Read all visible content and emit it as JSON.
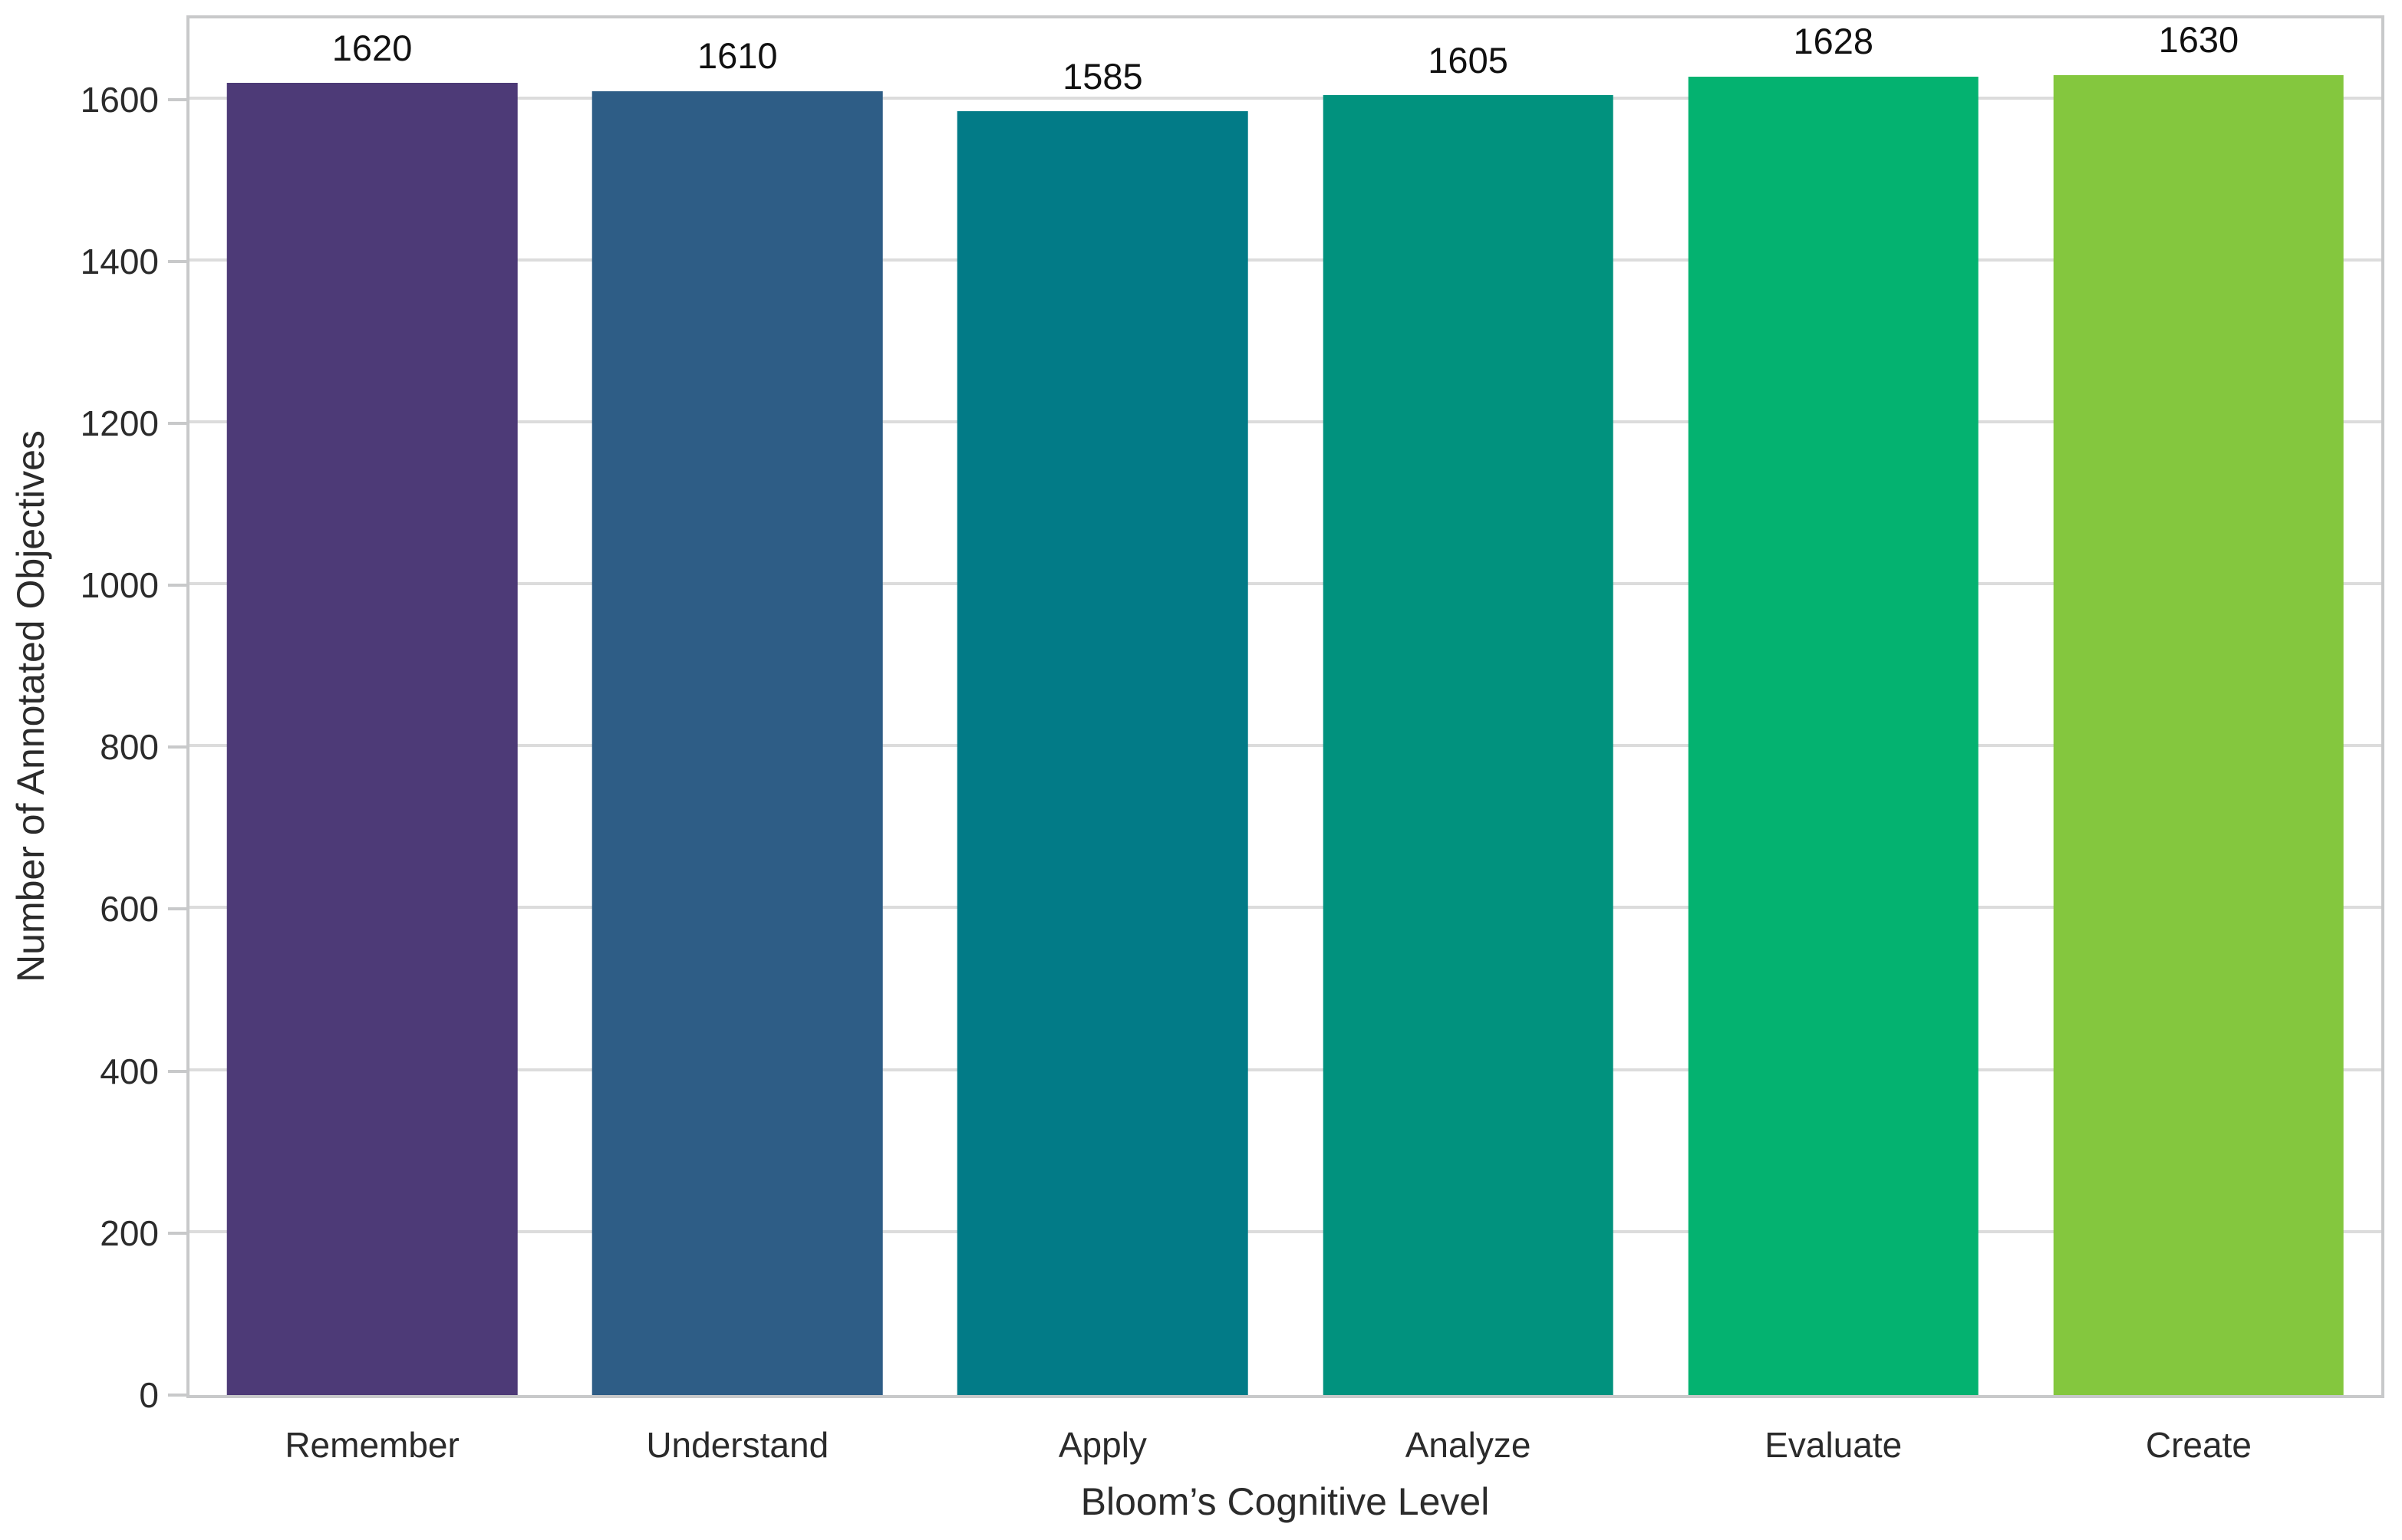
{
  "figure": {
    "background_color": "#ffffff",
    "spine_color": "#c8c9ca",
    "grid_color": "#dcdcdc",
    "tick_text_color": "#2b2b2b",
    "value_label_color": "#111111"
  },
  "chart_data": {
    "type": "bar",
    "title": "",
    "categories": [
      "Remember",
      "Understand",
      "Apply",
      "Analyze",
      "Evaluate",
      "Create"
    ],
    "values": [
      1620,
      1610,
      1585,
      1605,
      1628,
      1630
    ],
    "value_labels": [
      "1620",
      "1610",
      "1585",
      "1605",
      "1628",
      "1630"
    ],
    "bar_colors": [
      "#4d3a77",
      "#2e5d86",
      "#027b87",
      "#01927e",
      "#04b270",
      "#84c73e"
    ],
    "xlabel": "Bloom’s Cognitive Level",
    "ylabel": "Number of Annotated Objectives",
    "ylim": [
      0,
      1700
    ],
    "yticks": [
      0,
      200,
      400,
      600,
      800,
      1000,
      1200,
      1400,
      1600
    ],
    "grid": "horizontal",
    "legend": "none",
    "bar_width_fraction": 0.795
  }
}
